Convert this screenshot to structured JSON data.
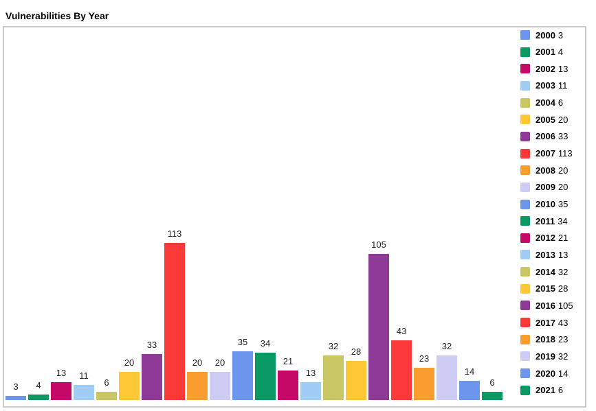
{
  "title": "Vulnerabilities By Year",
  "chart_data": {
    "type": "bar",
    "title": "Vulnerabilities By Year",
    "categories": [
      "2000",
      "2001",
      "2002",
      "2003",
      "2004",
      "2005",
      "2006",
      "2007",
      "2008",
      "2009",
      "2010",
      "2011",
      "2012",
      "2013",
      "2014",
      "2015",
      "2016",
      "2017",
      "2018",
      "2019",
      "2020",
      "2021"
    ],
    "values": [
      3,
      4,
      13,
      11,
      6,
      20,
      33,
      113,
      20,
      20,
      35,
      34,
      21,
      13,
      32,
      28,
      105,
      43,
      23,
      32,
      14,
      6
    ],
    "palette": [
      "#6C95EE",
      "#089A62",
      "#C50966",
      "#9FCDF5",
      "#C9C764",
      "#FDC735",
      "#8F3A97",
      "#FB3939",
      "#FA9D2F",
      "#CDCCF4"
    ],
    "xlabel": "",
    "ylabel": "",
    "ylim": [
      0,
      120
    ],
    "grid": false,
    "axes_visible": false,
    "legend_position": "right",
    "bar_value_labels": true,
    "legend_entries": [
      "2000 3",
      "2001 4",
      "2002 13",
      "2003 11",
      "2004 6",
      "2005 20",
      "2006 33",
      "2007 113",
      "2008 20",
      "2009 20",
      "2010 35",
      "2011 34",
      "2012 21",
      "2013 13",
      "2014 32",
      "2015 28",
      "2016 105",
      "2017 43",
      "2018 23",
      "2019 32",
      "2020 14",
      "2021 6"
    ]
  },
  "styles": {
    "border_color": "#CBCBCB",
    "label_color": "#222222",
    "title_color": "#000000",
    "background": "#FFFFFF"
  }
}
